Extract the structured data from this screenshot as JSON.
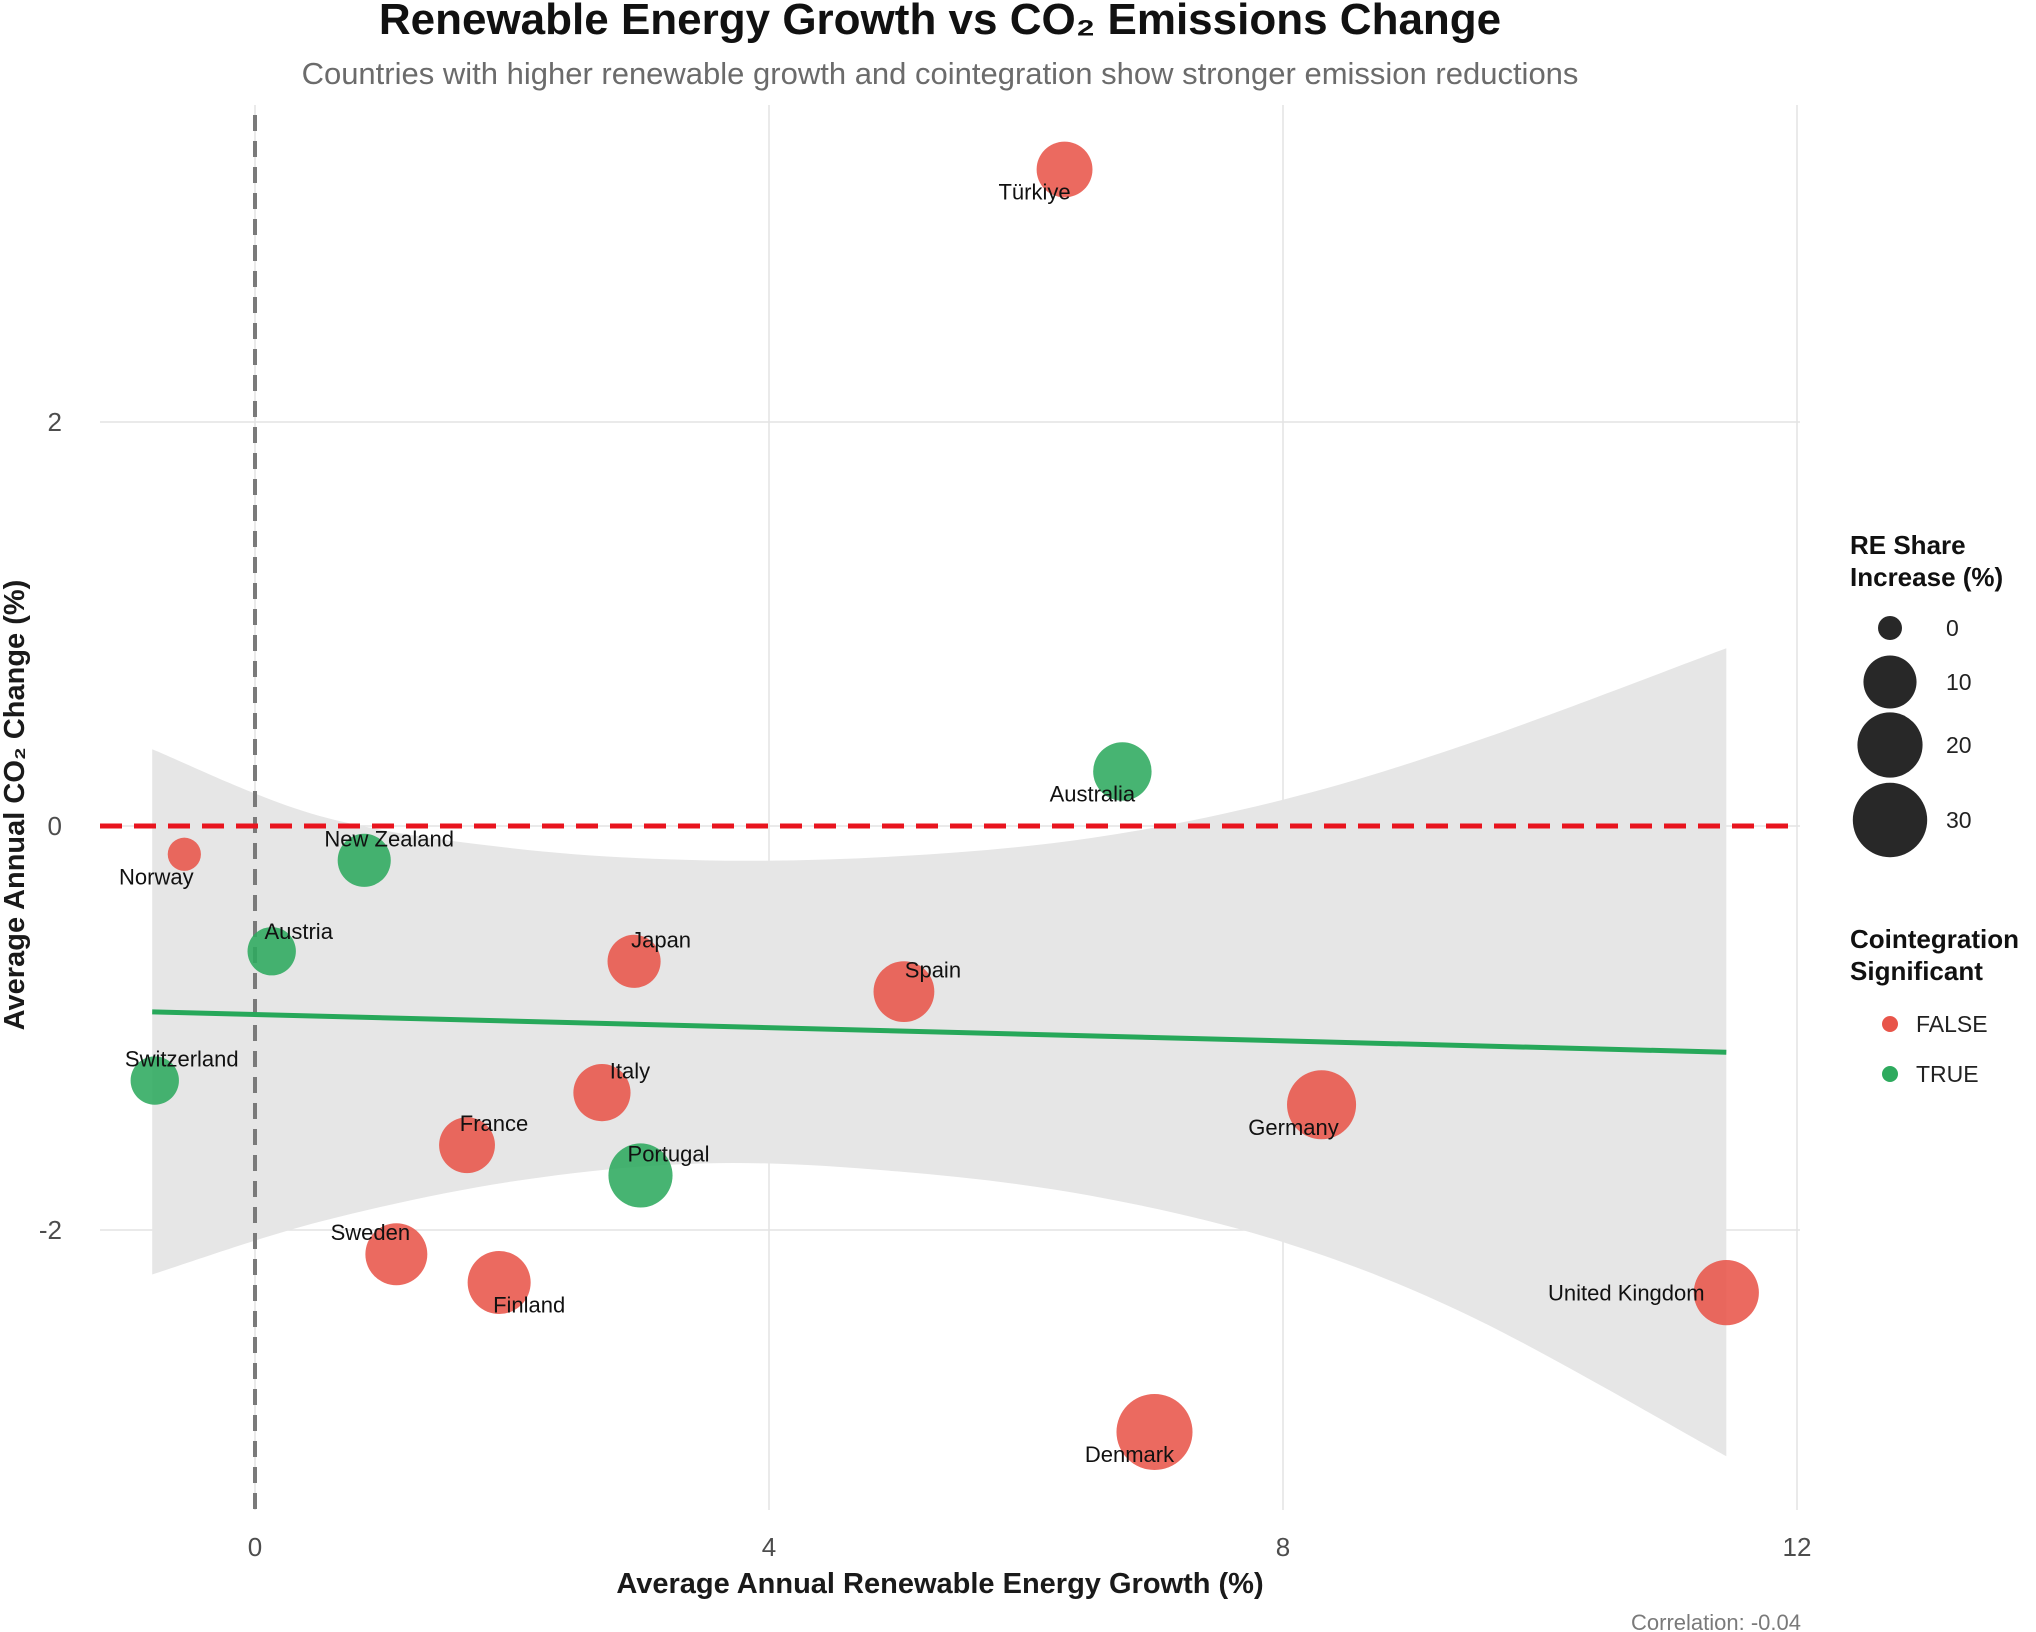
{
  "chart_data": {
    "type": "scatter",
    "title": "Renewable Energy Growth vs CO₂ Emissions Change",
    "subtitle": "Countries with higher renewable growth and cointegration show stronger emission reductions",
    "xlabel": "Average Annual Renewable Energy Growth (%)",
    "ylabel": "Average Annual CO₂ Change (%)",
    "xlim": [
      -1.2,
      12.0
    ],
    "ylim": [
      -3.5,
      3.5
    ],
    "x_ticks": [
      0,
      4,
      8,
      12
    ],
    "y_ticks": [
      -2,
      0,
      2
    ],
    "caption": "Correlation: -0.04",
    "colors": {
      "FALSE": "#e8554a",
      "TRUE": "#2eaa5e",
      "trend": "#27a85a",
      "ref_h": "#e8141e",
      "ref_v": "#7a7a7a",
      "band": "#e6e6e6",
      "grid": "#e3e3e3"
    },
    "points": [
      {
        "country": "Türkiye",
        "x": 6.3,
        "y": 3.25,
        "size": 12,
        "coint": "FALSE"
      },
      {
        "country": "Australia",
        "x": 6.75,
        "y": 0.27,
        "size": 14,
        "coint": "TRUE"
      },
      {
        "country": "Norway",
        "x": -0.55,
        "y": -0.14,
        "size": 1,
        "coint": "FALSE"
      },
      {
        "country": "New Zealand",
        "x": 0.85,
        "y": -0.17,
        "size": 10,
        "coint": "TRUE"
      },
      {
        "country": "Austria",
        "x": 0.13,
        "y": -0.62,
        "size": 7,
        "coint": "TRUE"
      },
      {
        "country": "Japan",
        "x": 2.95,
        "y": -0.67,
        "size": 10,
        "coint": "FALSE"
      },
      {
        "country": "Spain",
        "x": 5.05,
        "y": -0.82,
        "size": 16,
        "coint": "FALSE"
      },
      {
        "country": "Switzerland",
        "x": -0.78,
        "y": -1.26,
        "size": 7,
        "coint": "TRUE"
      },
      {
        "country": "Italy",
        "x": 2.7,
        "y": -1.32,
        "size": 13,
        "coint": "FALSE"
      },
      {
        "country": "Germany",
        "x": 8.3,
        "y": -1.38,
        "size": 24,
        "coint": "FALSE"
      },
      {
        "country": "France",
        "x": 1.65,
        "y": -1.58,
        "size": 12,
        "coint": "FALSE"
      },
      {
        "country": "Portugal",
        "x": 3.0,
        "y": -1.73,
        "size": 19,
        "coint": "TRUE"
      },
      {
        "country": "Sweden",
        "x": 1.1,
        "y": -2.12,
        "size": 17,
        "coint": "FALSE"
      },
      {
        "country": "Finland",
        "x": 1.9,
        "y": -2.26,
        "size": 18,
        "coint": "FALSE"
      },
      {
        "country": "United Kingdom",
        "x": 11.45,
        "y": -2.31,
        "size": 20,
        "coint": "FALSE"
      },
      {
        "country": "Denmark",
        "x": 7.0,
        "y": -3.0,
        "size": 32,
        "coint": "FALSE"
      }
    ],
    "trend": {
      "x": [
        -0.8,
        11.45
      ],
      "y": [
        -0.92,
        -1.12
      ]
    },
    "band": {
      "x": [
        -0.8,
        0.5,
        2.0,
        3.5,
        5.0,
        6.5,
        8.0,
        9.5,
        11.45
      ],
      "upper": [
        0.38,
        0.05,
        -0.11,
        -0.17,
        -0.15,
        -0.06,
        0.13,
        0.42,
        0.88
      ],
      "lower": [
        -2.22,
        -1.96,
        -1.76,
        -1.67,
        -1.71,
        -1.83,
        -2.06,
        -2.44,
        -3.12
      ]
    },
    "legend": {
      "size_title": [
        "RE Share",
        "Increase (%)"
      ],
      "size_items": [
        {
          "label": "0",
          "value": 0
        },
        {
          "label": "10",
          "value": 10
        },
        {
          "label": "20",
          "value": 20
        },
        {
          "label": "30",
          "value": 30
        }
      ],
      "color_title": [
        "Cointegration",
        "Significant"
      ],
      "color_items": [
        {
          "label": "FALSE",
          "key": "FALSE"
        },
        {
          "label": "TRUE",
          "key": "TRUE"
        }
      ]
    }
  }
}
